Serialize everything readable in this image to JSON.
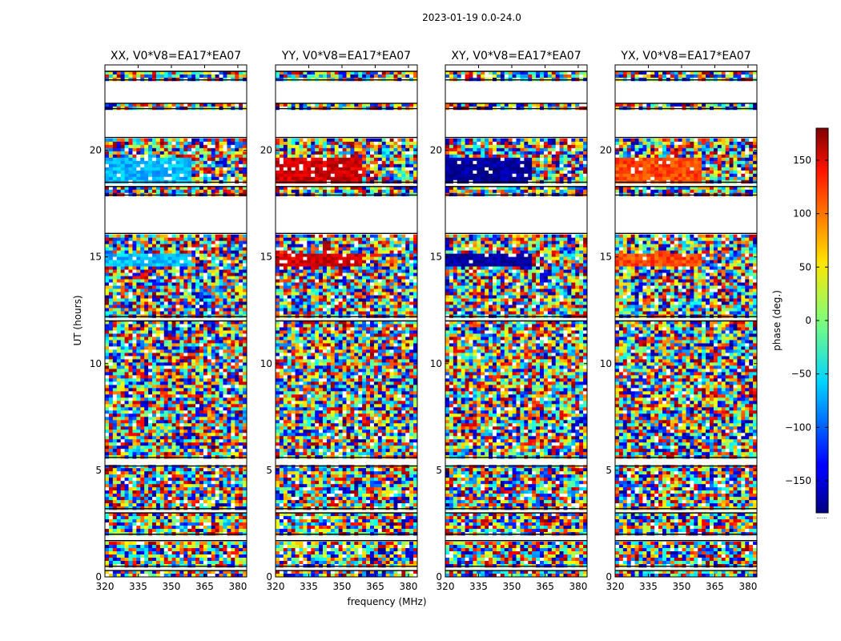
{
  "chart_data": {
    "type": "heatmap",
    "title": "2023-01-19 0.0-24.0",
    "xlabel": "frequency (MHz)",
    "ylabel": "UT (hours)",
    "xlim": [
      320,
      384
    ],
    "ylim": [
      0,
      24
    ],
    "x_ticks": [
      "320",
      "335",
      "350",
      "365",
      "380"
    ],
    "y_ticks": [
      "0",
      "5",
      "10",
      "15",
      "20"
    ],
    "panels": [
      {
        "title": "XX, V0*V8=EA17*EA07",
        "tone": -70
      },
      {
        "title": "YY, V0*V8=EA17*EA07",
        "tone": 150
      },
      {
        "title": "XY, V0*V8=EA17*EA07",
        "tone": -170
      },
      {
        "title": "YX, V0*V8=EA17*EA07",
        "tone": 110
      }
    ],
    "colorbar": {
      "label": "phase (deg.)",
      "range": [
        -180,
        180
      ],
      "ticks": [
        "150",
        "100",
        "50",
        "0",
        "−50",
        "−100",
        "−150"
      ],
      "footer": "......"
    },
    "gap_bands_hours": [
      [
        23.7,
        24.0
      ],
      [
        22.2,
        23.3
      ],
      [
        20.6,
        21.95
      ],
      [
        18.3,
        18.5
      ],
      [
        16.1,
        17.9
      ],
      [
        12.0,
        12.2
      ],
      [
        5.2,
        5.6
      ],
      [
        3.0,
        3.2
      ],
      [
        1.7,
        2.0
      ],
      [
        0.3,
        0.5
      ]
    ],
    "steady_bands_hours": [
      [
        18.5,
        19.6
      ],
      [
        14.6,
        15.2
      ]
    ]
  }
}
